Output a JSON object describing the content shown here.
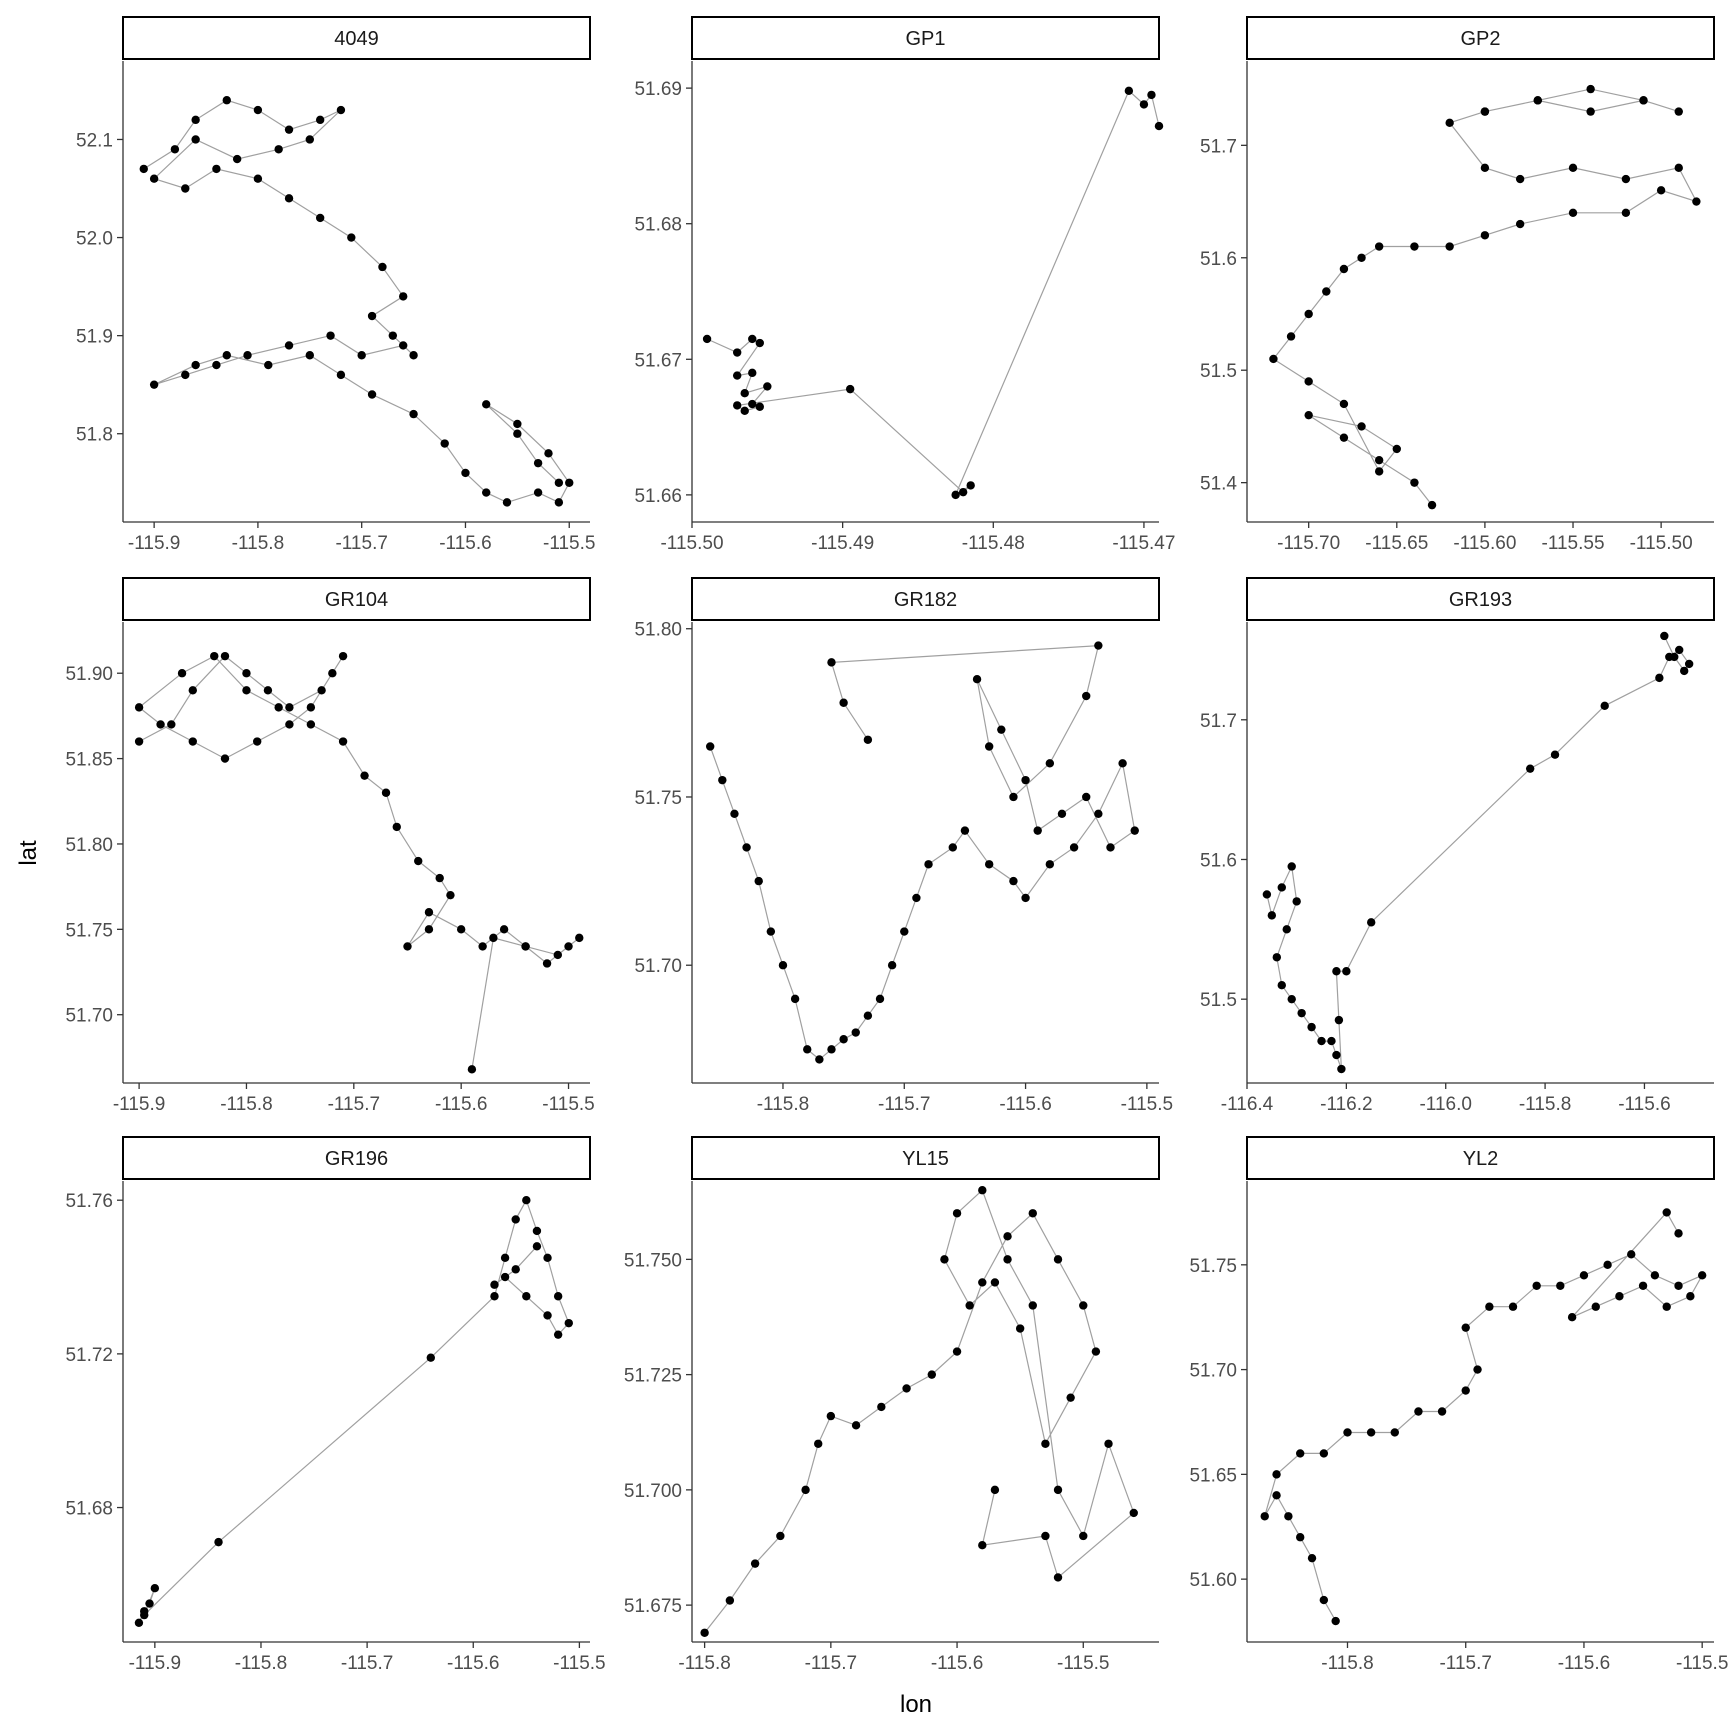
{
  "figure": {
    "xlabel": "lon",
    "ylabel": "lat"
  },
  "style": {
    "point_color": "#000000",
    "line_color": "#a0a0a0",
    "axis_color": "#333333",
    "background": "#ffffff"
  },
  "chart_data": [
    {
      "type": "scatter",
      "title": "4049",
      "xlim": [
        -115.93,
        -115.48
      ],
      "ylim": [
        51.71,
        52.18
      ],
      "xticks": [
        -115.9,
        -115.8,
        -115.7,
        -115.6,
        -115.5
      ],
      "xtick_labels": [
        "-115.9",
        "-115.8",
        "-115.7",
        "-115.6",
        "-115.5"
      ],
      "yticks": [
        51.8,
        51.9,
        52.0,
        52.1
      ],
      "ytick_labels": [
        "51.8",
        "51.9",
        "52.0",
        "52.1"
      ],
      "series": [
        {
          "x": [
            -115.91,
            -115.88,
            -115.86,
            -115.83,
            -115.8,
            -115.77,
            -115.74,
            -115.72,
            -115.75,
            -115.78,
            -115.82,
            -115.86,
            -115.9,
            -115.87,
            -115.84,
            -115.8,
            -115.77,
            -115.74,
            -115.71,
            -115.68,
            -115.66,
            -115.69,
            -115.67,
            -115.65,
            -115.66,
            -115.7,
            -115.73,
            -115.77,
            -115.81,
            -115.84,
            -115.87,
            -115.9,
            -115.86,
            -115.83,
            -115.79,
            -115.75,
            -115.72,
            -115.69,
            -115.65,
            -115.62,
            -115.6,
            -115.58,
            -115.56,
            -115.53,
            -115.51,
            -115.5,
            -115.52,
            -115.55,
            -115.58,
            -115.55,
            -115.53,
            -115.51
          ],
          "y": [
            52.07,
            52.09,
            52.12,
            52.14,
            52.13,
            52.11,
            52.12,
            52.13,
            52.1,
            52.09,
            52.08,
            52.1,
            52.06,
            52.05,
            52.07,
            52.06,
            52.04,
            52.02,
            52.0,
            51.97,
            51.94,
            51.92,
            51.9,
            51.88,
            51.89,
            51.88,
            51.9,
            51.89,
            51.88,
            51.87,
            51.86,
            51.85,
            51.87,
            51.88,
            51.87,
            51.88,
            51.86,
            51.84,
            51.82,
            51.79,
            51.76,
            51.74,
            51.73,
            51.74,
            51.73,
            51.75,
            51.78,
            51.81,
            51.83,
            51.8,
            51.77,
            51.75
          ]
        }
      ]
    },
    {
      "type": "scatter",
      "title": "GP1",
      "xlim": [
        -115.5,
        -115.469
      ],
      "ylim": [
        51.658,
        51.692
      ],
      "xticks": [
        -115.5,
        -115.49,
        -115.48,
        -115.47
      ],
      "xtick_labels": [
        "-115.50",
        "-115.49",
        "-115.48",
        "-115.47"
      ],
      "yticks": [
        51.66,
        51.67,
        51.68,
        51.69
      ],
      "ytick_labels": [
        "51.66",
        "51.67",
        "51.68",
        "51.69"
      ],
      "series": [
        {
          "x": [
            -115.499,
            -115.497,
            -115.496,
            -115.4955,
            -115.497,
            -115.496,
            -115.4965,
            -115.495,
            -115.496,
            -115.4955,
            -115.4965,
            -115.497,
            -115.4895,
            -115.482,
            -115.4815,
            -115.4825,
            -115.471,
            -115.47,
            -115.4695,
            -115.469
          ],
          "y": [
            51.6715,
            51.6705,
            51.6715,
            51.6712,
            51.6688,
            51.669,
            51.6675,
            51.668,
            51.6667,
            51.6665,
            51.6662,
            51.6666,
            51.6678,
            51.6602,
            51.6607,
            51.66,
            51.6898,
            51.6888,
            51.6895,
            51.6872
          ]
        }
      ]
    },
    {
      "type": "scatter",
      "title": "GP2",
      "xlim": [
        -115.735,
        -115.47
      ],
      "ylim": [
        51.365,
        51.775
      ],
      "xticks": [
        -115.7,
        -115.65,
        -115.6,
        -115.55,
        -115.5
      ],
      "xtick_labels": [
        "-115.70",
        "-115.65",
        "-115.60",
        "-115.55",
        "-115.50"
      ],
      "yticks": [
        51.4,
        51.5,
        51.6,
        51.7
      ],
      "ytick_labels": [
        "51.4",
        "51.5",
        "51.6",
        "51.7"
      ],
      "series": [
        {
          "x": [
            -115.63,
            -115.64,
            -115.66,
            -115.68,
            -115.7,
            -115.67,
            -115.65,
            -115.66,
            -115.68,
            -115.7,
            -115.72,
            -115.71,
            -115.7,
            -115.69,
            -115.68,
            -115.67,
            -115.66,
            -115.64,
            -115.62,
            -115.6,
            -115.58,
            -115.55,
            -115.52,
            -115.5,
            -115.48,
            -115.49,
            -115.52,
            -115.55,
            -115.58,
            -115.6,
            -115.62,
            -115.6,
            -115.57,
            -115.54,
            -115.51,
            -115.49,
            -115.51,
            -115.54,
            -115.57,
            -115.6
          ],
          "y": [
            51.38,
            51.4,
            51.42,
            51.44,
            51.46,
            51.45,
            51.43,
            51.41,
            51.47,
            51.49,
            51.51,
            51.53,
            51.55,
            51.57,
            51.59,
            51.6,
            51.61,
            51.61,
            51.61,
            51.62,
            51.63,
            51.64,
            51.64,
            51.66,
            51.65,
            51.68,
            51.67,
            51.68,
            51.67,
            51.68,
            51.72,
            51.73,
            51.74,
            51.75,
            51.74,
            51.73,
            51.74,
            51.73,
            51.74,
            51.73
          ]
        }
      ]
    },
    {
      "type": "scatter",
      "title": "GR104",
      "xlim": [
        -115.915,
        -115.48
      ],
      "ylim": [
        51.66,
        51.93
      ],
      "xticks": [
        -115.9,
        -115.8,
        -115.7,
        -115.6,
        -115.5
      ],
      "xtick_labels": [
        "-115.9",
        "-115.8",
        "-115.7",
        "-115.6",
        "-115.5"
      ],
      "yticks": [
        51.7,
        51.75,
        51.8,
        51.85,
        51.9
      ],
      "ytick_labels": [
        "51.70",
        "51.75",
        "51.80",
        "51.85",
        "51.90"
      ],
      "series": [
        {
          "x": [
            -115.9,
            -115.87,
            -115.85,
            -115.82,
            -115.8,
            -115.78,
            -115.76,
            -115.73,
            -115.71,
            -115.72,
            -115.74,
            -115.76,
            -115.79,
            -115.82,
            -115.85,
            -115.88,
            -115.9,
            -115.86,
            -115.83,
            -115.8,
            -115.77,
            -115.74,
            -115.71,
            -115.69,
            -115.67,
            -115.66,
            -115.64,
            -115.62,
            -115.61,
            -115.63,
            -115.65,
            -115.63,
            -115.6,
            -115.58,
            -115.56,
            -115.54,
            -115.52,
            -115.5,
            -115.49,
            -115.51,
            -115.54,
            -115.57,
            -115.59
          ],
          "y": [
            51.86,
            51.87,
            51.89,
            51.91,
            51.9,
            51.89,
            51.88,
            51.89,
            51.91,
            51.9,
            51.88,
            51.87,
            51.86,
            51.85,
            51.86,
            51.87,
            51.88,
            51.9,
            51.91,
            51.89,
            51.88,
            51.87,
            51.86,
            51.84,
            51.83,
            51.81,
            51.79,
            51.78,
            51.77,
            51.75,
            51.74,
            51.76,
            51.75,
            51.74,
            51.75,
            51.74,
            51.73,
            51.74,
            51.745,
            51.735,
            51.74,
            51.745,
            51.668
          ]
        }
      ]
    },
    {
      "type": "scatter",
      "title": "GR182",
      "xlim": [
        -115.875,
        -115.49
      ],
      "ylim": [
        51.665,
        51.802
      ],
      "xticks": [
        -115.8,
        -115.7,
        -115.6,
        -115.5
      ],
      "xtick_labels": [
        "-115.8",
        "-115.7",
        "-115.6",
        "-115.5"
      ],
      "yticks": [
        51.7,
        51.75,
        51.8
      ],
      "ytick_labels": [
        "51.70",
        "51.75",
        "51.80"
      ],
      "series": [
        {
          "x": [
            -115.86,
            -115.85,
            -115.84,
            -115.83,
            -115.82,
            -115.81,
            -115.8,
            -115.79,
            -115.78,
            -115.77,
            -115.76,
            -115.75,
            -115.74,
            -115.73,
            -115.72,
            -115.71,
            -115.7,
            -115.69,
            -115.68,
            -115.66,
            -115.65,
            -115.63,
            -115.61,
            -115.6,
            -115.58,
            -115.56,
            -115.54,
            -115.52,
            -115.51,
            -115.53,
            -115.55,
            -115.57,
            -115.59,
            -115.6,
            -115.62,
            -115.64,
            -115.63,
            -115.61,
            -115.58,
            -115.55,
            -115.54,
            -115.76,
            -115.75,
            -115.73
          ],
          "y": [
            51.765,
            51.755,
            51.745,
            51.735,
            51.725,
            51.71,
            51.7,
            51.69,
            51.675,
            51.672,
            51.675,
            51.678,
            51.68,
            51.685,
            51.69,
            51.7,
            51.71,
            51.72,
            51.73,
            51.735,
            51.74,
            51.73,
            51.725,
            51.72,
            51.73,
            51.735,
            51.745,
            51.76,
            51.74,
            51.735,
            51.75,
            51.745,
            51.74,
            51.755,
            51.77,
            51.785,
            51.765,
            51.75,
            51.76,
            51.78,
            51.795,
            51.79,
            51.778,
            51.767
          ]
        }
      ]
    },
    {
      "type": "scatter",
      "title": "GR193",
      "xlim": [
        -116.4,
        -115.46
      ],
      "ylim": [
        51.44,
        51.77
      ],
      "xticks": [
        -116.4,
        -116.2,
        -116.0,
        -115.8,
        -115.6
      ],
      "xtick_labels": [
        "-116.4",
        "-116.2",
        "-116.0",
        "-115.8",
        "-115.6"
      ],
      "yticks": [
        51.5,
        51.6,
        51.7
      ],
      "ytick_labels": [
        "51.5",
        "51.6",
        "51.7"
      ],
      "series": [
        {
          "x": [
            -116.36,
            -116.35,
            -116.33,
            -116.31,
            -116.3,
            -116.32,
            -116.34,
            -116.33,
            -116.31,
            -116.29,
            -116.27,
            -116.25,
            -116.23,
            -116.22,
            -116.21,
            -116.215,
            -116.22,
            -116.2,
            -116.15,
            -115.83,
            -115.78,
            -115.68,
            -115.57,
            -115.55,
            -115.53,
            -115.51,
            -115.52,
            -115.54,
            -115.56
          ],
          "y": [
            51.575,
            51.56,
            51.58,
            51.595,
            51.57,
            51.55,
            51.53,
            51.51,
            51.5,
            51.49,
            51.48,
            51.47,
            51.47,
            51.46,
            51.45,
            51.485,
            51.52,
            51.52,
            51.555,
            51.665,
            51.675,
            51.71,
            51.73,
            51.745,
            51.75,
            51.74,
            51.735,
            51.745,
            51.76
          ]
        }
      ]
    },
    {
      "type": "scatter",
      "title": "GR196",
      "xlim": [
        -115.93,
        -115.49
      ],
      "ylim": [
        51.645,
        51.765
      ],
      "xticks": [
        -115.9,
        -115.8,
        -115.7,
        -115.6,
        -115.5
      ],
      "xtick_labels": [
        "-115.9",
        "-115.8",
        "-115.7",
        "-115.6",
        "-115.5"
      ],
      "yticks": [
        51.68,
        51.72,
        51.76
      ],
      "ytick_labels": [
        "51.68",
        "51.72",
        "51.76"
      ],
      "series": [
        {
          "x": [
            -115.915,
            -115.91,
            -115.905,
            -115.9,
            -115.91,
            -115.84,
            -115.64,
            -115.58,
            -115.57,
            -115.56,
            -115.55,
            -115.54,
            -115.53,
            -115.52,
            -115.51,
            -115.52,
            -115.53,
            -115.55,
            -115.57,
            -115.58,
            -115.56,
            -115.54
          ],
          "y": [
            51.65,
            51.653,
            51.655,
            51.659,
            51.652,
            51.671,
            51.719,
            51.735,
            51.745,
            51.755,
            51.76,
            51.752,
            51.745,
            51.735,
            51.728,
            51.725,
            51.73,
            51.735,
            51.74,
            51.738,
            51.742,
            51.748
          ]
        }
      ]
    },
    {
      "type": "scatter",
      "title": "YL15",
      "xlim": [
        -115.81,
        -115.44
      ],
      "ylim": [
        51.667,
        51.767
      ],
      "xticks": [
        -115.8,
        -115.7,
        -115.6,
        -115.5
      ],
      "xtick_labels": [
        "-115.8",
        "-115.7",
        "-115.6",
        "-115.5"
      ],
      "yticks": [
        51.675,
        51.7,
        51.725,
        51.75
      ],
      "ytick_labels": [
        "51.675",
        "51.700",
        "51.725",
        "51.750"
      ],
      "series": [
        {
          "x": [
            -115.8,
            -115.78,
            -115.76,
            -115.74,
            -115.72,
            -115.71,
            -115.7,
            -115.68,
            -115.66,
            -115.64,
            -115.62,
            -115.6,
            -115.58,
            -115.56,
            -115.54,
            -115.52,
            -115.5,
            -115.49,
            -115.51,
            -115.53,
            -115.55,
            -115.57,
            -115.59,
            -115.61,
            -115.6,
            -115.58,
            -115.56,
            -115.54,
            -115.52,
            -115.5,
            -115.48,
            -115.46,
            -115.52,
            -115.53,
            -115.58,
            -115.57
          ],
          "y": [
            51.669,
            51.676,
            51.684,
            51.69,
            51.7,
            51.71,
            51.716,
            51.714,
            51.718,
            51.722,
            51.725,
            51.73,
            51.745,
            51.755,
            51.76,
            51.75,
            51.74,
            51.73,
            51.72,
            51.71,
            51.735,
            51.745,
            51.74,
            51.75,
            51.76,
            51.765,
            51.75,
            51.74,
            51.7,
            51.69,
            51.71,
            51.695,
            51.681,
            51.69,
            51.688,
            51.7
          ]
        }
      ]
    },
    {
      "type": "scatter",
      "title": "YL2",
      "xlim": [
        -115.885,
        -115.49
      ],
      "ylim": [
        51.57,
        51.79
      ],
      "xticks": [
        -115.8,
        -115.7,
        -115.6,
        -115.5
      ],
      "xtick_labels": [
        "-115.8",
        "-115.7",
        "-115.6",
        "-115.5"
      ],
      "yticks": [
        51.6,
        51.65,
        51.7,
        51.75
      ],
      "ytick_labels": [
        "51.60",
        "51.65",
        "51.70",
        "51.75"
      ],
      "series": [
        {
          "x": [
            -115.81,
            -115.82,
            -115.83,
            -115.84,
            -115.85,
            -115.86,
            -115.87,
            -115.86,
            -115.84,
            -115.82,
            -115.8,
            -115.78,
            -115.76,
            -115.74,
            -115.72,
            -115.7,
            -115.69,
            -115.7,
            -115.68,
            -115.66,
            -115.64,
            -115.62,
            -115.6,
            -115.58,
            -115.56,
            -115.54,
            -115.52,
            -115.5,
            -115.51,
            -115.53,
            -115.55,
            -115.57,
            -115.59,
            -115.61,
            -115.53,
            -115.52
          ],
          "y": [
            51.58,
            51.59,
            51.61,
            51.62,
            51.63,
            51.64,
            51.63,
            51.65,
            51.66,
            51.66,
            51.67,
            51.67,
            51.67,
            51.68,
            51.68,
            51.69,
            51.7,
            51.72,
            51.73,
            51.73,
            51.74,
            51.74,
            51.745,
            51.75,
            51.755,
            51.745,
            51.74,
            51.745,
            51.735,
            51.73,
            51.74,
            51.735,
            51.73,
            51.725,
            51.775,
            51.765
          ]
        }
      ]
    }
  ]
}
